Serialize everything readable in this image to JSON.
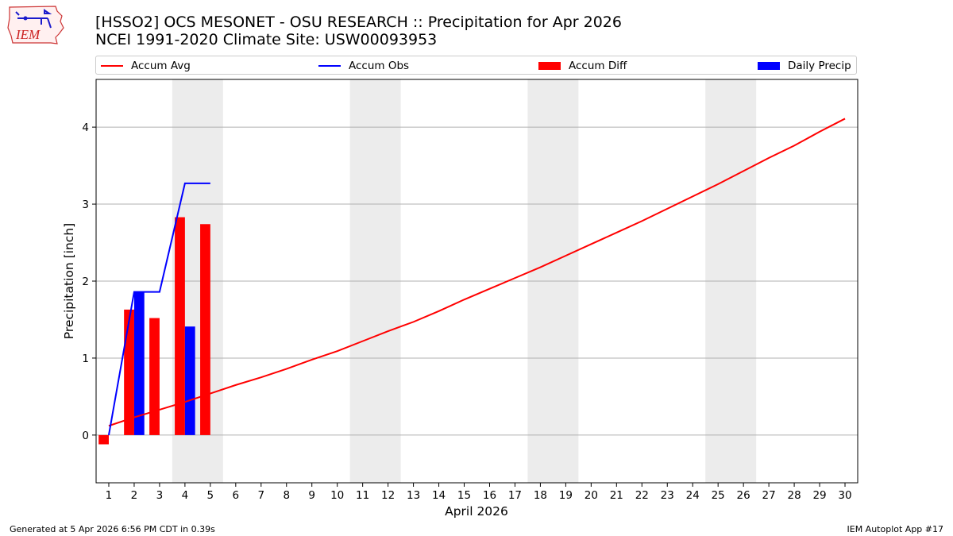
{
  "logo": {
    "text": "IEM"
  },
  "title_line1": "[HSSO2] OCS MESONET - OSU RESEARCH :: Precipitation for Apr 2026",
  "title_line2": "NCEI 1991-2020 Climate Site: USW00093953",
  "footer_left": "Generated at 5 Apr 2026 6:56 PM CDT in 0.39s",
  "footer_right": "IEM Autoplot App #17",
  "colors": {
    "avg": "#ff0000",
    "obs": "#0000ff",
    "diff": "#ff0000",
    "daily": "#0000ff",
    "weekend": "#ececec",
    "grid": "#b0b0b0"
  },
  "chart_data": {
    "type": "bar",
    "title": "[HSSO2] OCS MESONET - OSU RESEARCH :: Precipitation for Apr 2026",
    "subtitle": "NCEI 1991-2020 Climate Site: USW00093953",
    "xlabel": "April 2026",
    "ylabel": "Precipitation [inch]",
    "x": [
      1,
      2,
      3,
      4,
      5,
      6,
      7,
      8,
      9,
      10,
      11,
      12,
      13,
      14,
      15,
      16,
      17,
      18,
      19,
      20,
      21,
      22,
      23,
      24,
      25,
      26,
      27,
      28,
      29,
      30
    ],
    "xlim": [
      0.5,
      30.5
    ],
    "ylim": [
      -0.62,
      4.62
    ],
    "yticks": [
      0,
      1,
      2,
      3,
      4
    ],
    "grid": "y",
    "legend_position": "top",
    "legend": [
      "Accum Avg",
      "Accum Obs",
      "Accum Diff",
      "Daily Precip"
    ],
    "shaded_days": [
      [
        4,
        5
      ],
      [
        11,
        12
      ],
      [
        18,
        19
      ],
      [
        25,
        26
      ]
    ],
    "series": [
      {
        "name": "Accum Avg",
        "type": "line",
        "values": [
          0.12,
          0.23,
          0.33,
          0.43,
          0.54,
          0.65,
          0.75,
          0.86,
          0.98,
          1.09,
          1.22,
          1.35,
          1.47,
          1.61,
          1.76,
          1.9,
          2.04,
          2.18,
          2.33,
          2.48,
          2.63,
          2.78,
          2.94,
          3.1,
          3.26,
          3.43,
          3.6,
          3.76,
          3.94,
          4.11
        ]
      },
      {
        "name": "Accum Obs",
        "type": "line",
        "x": [
          1,
          2,
          3,
          4,
          5
        ],
        "values": [
          0.0,
          1.86,
          1.86,
          3.27,
          3.27
        ]
      },
      {
        "name": "Accum Diff",
        "type": "bar",
        "x": [
          1,
          2,
          3,
          4,
          5
        ],
        "values": [
          -0.12,
          1.63,
          1.52,
          2.83,
          2.74
        ]
      },
      {
        "name": "Daily Precip",
        "type": "bar",
        "x": [
          1,
          2,
          3,
          4,
          5
        ],
        "values": [
          0.0,
          1.86,
          0.0,
          1.41,
          0.0
        ]
      }
    ]
  }
}
